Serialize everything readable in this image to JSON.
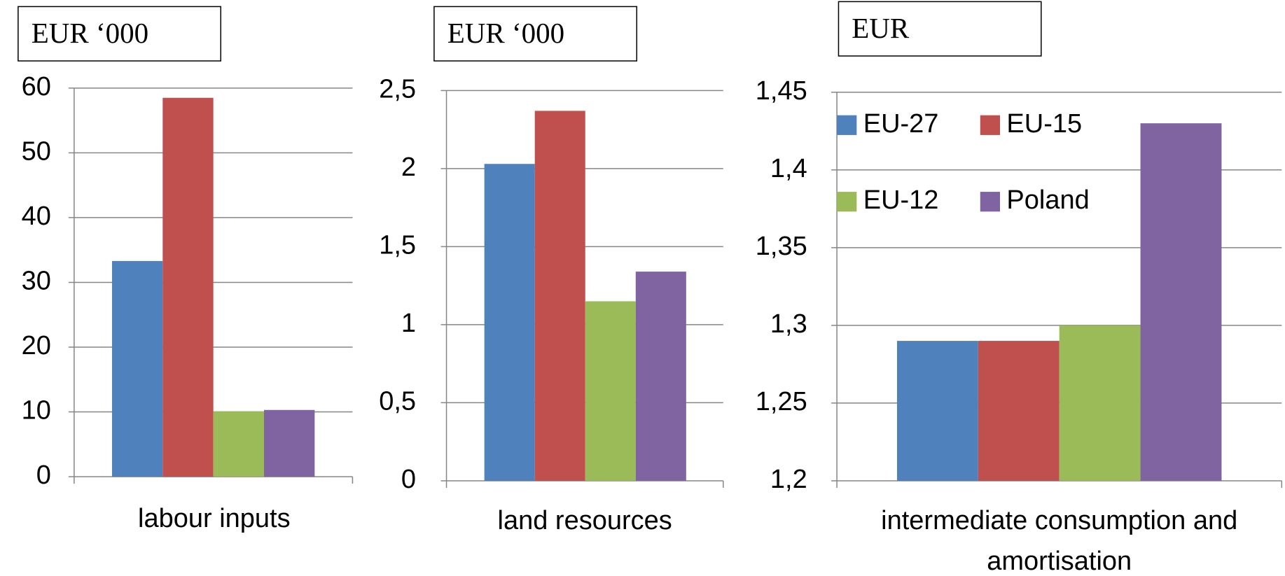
{
  "chart_data": [
    {
      "type": "bar",
      "unit_label": "EUR ‘000",
      "categories": [
        "labour inputs"
      ],
      "series": [
        {
          "name": "EU-27",
          "color": "#4f81bd",
          "values": [
            33.3
          ]
        },
        {
          "name": "EU-15",
          "color": "#c0504d",
          "values": [
            58.5
          ]
        },
        {
          "name": "EU-12",
          "color": "#9bbb59",
          "values": [
            10.1
          ]
        },
        {
          "name": "Poland",
          "color": "#8064a2",
          "values": [
            10.3
          ]
        }
      ],
      "ylim": [
        0,
        60
      ],
      "yticks": [
        0,
        10,
        20,
        30,
        40,
        50,
        60
      ],
      "grid": true
    },
    {
      "type": "bar",
      "unit_label": "EUR ‘000",
      "categories": [
        "land resources"
      ],
      "series": [
        {
          "name": "EU-27",
          "color": "#4f81bd",
          "values": [
            2.03
          ]
        },
        {
          "name": "EU-15",
          "color": "#c0504d",
          "values": [
            2.37
          ]
        },
        {
          "name": "EU-12",
          "color": "#9bbb59",
          "values": [
            1.15
          ]
        },
        {
          "name": "Poland",
          "color": "#8064a2",
          "values": [
            1.34
          ]
        }
      ],
      "ylim": [
        0,
        2.5
      ],
      "yticks": [
        0,
        {
          "value": 0.5,
          "label": "0,5"
        },
        1,
        {
          "value": 1.5,
          "label": "1,5"
        },
        2,
        {
          "value": 2.5,
          "label": "2,5"
        }
      ],
      "grid": true
    },
    {
      "type": "bar",
      "unit_label": "EUR",
      "categories": [
        "intermediate consumption and amortisation"
      ],
      "series": [
        {
          "name": "EU-27",
          "color": "#4f81bd",
          "values": [
            1.29
          ]
        },
        {
          "name": "EU-15",
          "color": "#c0504d",
          "values": [
            1.29
          ]
        },
        {
          "name": "EU-12",
          "color": "#9bbb59",
          "values": [
            1.3
          ]
        },
        {
          "name": "Poland",
          "color": "#8064a2",
          "values": [
            1.43
          ]
        }
      ],
      "ylim": [
        1.2,
        1.45
      ],
      "yticks": [
        {
          "value": 1.2,
          "label": "1,2"
        },
        {
          "value": 1.25,
          "label": "1,25"
        },
        {
          "value": 1.3,
          "label": "1,3"
        },
        {
          "value": 1.35,
          "label": "1,35"
        },
        {
          "value": 1.4,
          "label": "1,4"
        },
        {
          "value": 1.45,
          "label": "1,45"
        }
      ],
      "grid": true,
      "legend": "upper left"
    }
  ]
}
